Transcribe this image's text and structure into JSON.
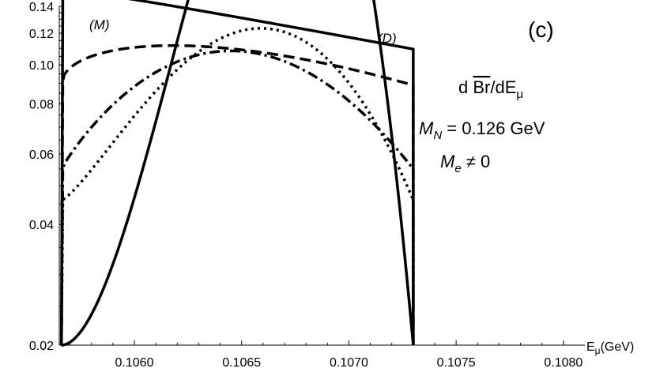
{
  "chart_data": {
    "type": "line",
    "title": "",
    "xlabel": "Eμ(GeV)",
    "xlabel_parts": {
      "main": "E",
      "sub": "μ",
      "unit": "(GeV)"
    },
    "ylabel": "",
    "xlim": [
      0.10565,
      0.1081
    ],
    "ylim": [
      0.02,
      0.14
    ],
    "yscale": "log",
    "grid": false,
    "xticks": [
      "0.1060",
      "0.1065",
      "0.1070",
      "0.1075",
      "0.1080"
    ],
    "xtick_values": [
      0.106,
      0.1065,
      0.107,
      0.1075,
      0.108
    ],
    "yticks": [
      "0.02",
      "0.04",
      "0.06",
      "0.08",
      "0.10",
      "0.12",
      "0.14"
    ],
    "ytick_values": [
      0.02,
      0.04,
      0.06,
      0.08,
      0.1,
      0.12,
      0.14
    ],
    "panel_label": "(c)",
    "annotations": {
      "quantity": {
        "pre": "d ",
        "over": "Br",
        "post": "/dE",
        "sub": "μ"
      },
      "mass": {
        "main": "M",
        "sub": "N",
        "rest": " = 0.126 GeV"
      },
      "electron": {
        "main": "M",
        "sub": "e",
        "rest": " ≠ 0"
      }
    },
    "curve_labels": {
      "majorana": "(M)",
      "dirac": "(D)"
    },
    "x_min": 0.10566,
    "x_max": 0.1073,
    "series": [
      {
        "label": "(M)",
        "style": "solid",
        "peak_x": 0.10622,
        "peak_y": 0.126,
        "end_y": 0.02
      },
      {
        "label": "",
        "style": "dotted",
        "peak_x": 0.10637,
        "peak_y": 0.114,
        "end_y": 0.046
      },
      {
        "label": "",
        "style": "dashdot",
        "peak_x": 0.10651,
        "peak_y": 0.108,
        "end_y": 0.055
      },
      {
        "label": "",
        "style": "dashed",
        "peak_x": 0.10678,
        "peak_y": 0.1035,
        "end_y": 0.089
      },
      {
        "label": "(D)",
        "style": "solid",
        "peak_x": 0.10726,
        "peak_y": 0.1105,
        "end_y": 0.1095
      }
    ]
  }
}
